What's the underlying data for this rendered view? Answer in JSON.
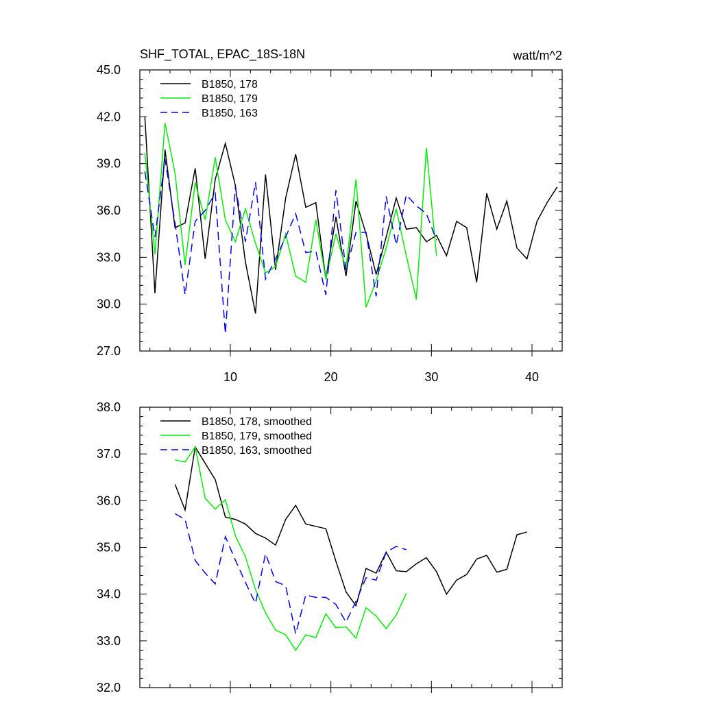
{
  "chart_data": [
    {
      "type": "line",
      "title": "SHF_TOTAL, EPAC_18S-18N",
      "units": "watt/m^2",
      "xlim": [
        1,
        43
      ],
      "ylim": [
        27,
        45
      ],
      "x_ticks": [
        10,
        20,
        30,
        40
      ],
      "x_tick_labels": [
        "10",
        "20",
        "30",
        "40"
      ],
      "y_ticks": [
        27,
        30,
        33,
        36,
        39,
        42,
        45
      ],
      "y_tick_labels": [
        "27.0",
        "30.0",
        "33.0",
        "36.0",
        "39.0",
        "42.0",
        "45.0"
      ],
      "legend_position": "top-left",
      "series": [
        {
          "name": "B1850, 178",
          "color": "#000000",
          "dash": "solid",
          "x": [
            1.5,
            2.5,
            3.5,
            4.5,
            5.5,
            6.5,
            7.5,
            8.5,
            9.5,
            10.5,
            11.5,
            12.5,
            13.5,
            14.5,
            15.5,
            16.5,
            17.5,
            18.5,
            19.5,
            20.5,
            21.5,
            22.5,
            23.5,
            24.5,
            25.5,
            26.5,
            27.5,
            28.5,
            29.5,
            30.5,
            31.5,
            32.5,
            33.5,
            34.5,
            35.5,
            36.5,
            37.5,
            38.5,
            39.5,
            40.5,
            41.5,
            42.5
          ],
          "values": [
            42.0,
            30.7,
            39.9,
            34.9,
            35.2,
            38.7,
            32.9,
            38.0,
            40.3,
            37.6,
            32.7,
            29.4,
            38.3,
            32.2,
            36.8,
            39.6,
            36.2,
            36.5,
            31.6,
            35.6,
            31.8,
            36.6,
            34.5,
            31.9,
            34.3,
            36.8,
            34.8,
            34.9,
            34.0,
            34.4,
            33.1,
            35.3,
            34.9,
            31.4,
            37.1,
            34.8,
            36.6,
            33.6,
            32.9,
            35.3,
            36.5,
            37.5
          ]
        },
        {
          "name": "B1850, 179",
          "color": "#00ee00",
          "dash": "solid",
          "x": [
            1.5,
            2.5,
            3.5,
            4.5,
            5.5,
            6.5,
            7.5,
            8.5,
            9.5,
            10.5,
            11.5,
            12.5,
            13.5,
            14.5,
            15.5,
            16.5,
            17.5,
            18.5,
            19.5,
            20.5,
            21.5,
            22.5,
            23.5,
            24.5,
            25.5,
            26.5,
            27.5,
            28.5,
            29.5,
            30.5
          ],
          "values": [
            39.7,
            33.2,
            41.6,
            38.4,
            32.5,
            37.8,
            35.4,
            39.4,
            35.4,
            34.0,
            36.1,
            33.9,
            32.0,
            32.4,
            34.5,
            31.8,
            31.4,
            35.4,
            31.6,
            34.5,
            32.3,
            38.0,
            29.8,
            31.5,
            33.6,
            36.1,
            33.1,
            30.3,
            40.0,
            33.1
          ]
        },
        {
          "name": "B1850, 163",
          "color": "#0000ee",
          "dash": "dashed",
          "x": [
            1.5,
            2.5,
            3.5,
            4.5,
            5.5,
            6.5,
            7.5,
            8.5,
            9.5,
            10.5,
            11.5,
            12.5,
            13.5,
            14.5,
            15.5,
            16.5,
            17.5,
            18.5,
            19.5,
            20.5,
            21.5,
            22.5,
            23.5,
            24.5,
            25.5,
            26.5,
            27.5,
            28.5,
            29.5,
            30.5
          ],
          "values": [
            38.5,
            34.3,
            39.3,
            35.2,
            30.6,
            35.3,
            36.0,
            37.1,
            28.1,
            37.5,
            34.0,
            37.8,
            31.6,
            32.9,
            34.3,
            35.8,
            33.3,
            33.4,
            30.6,
            37.3,
            32.2,
            34.6,
            34.6,
            30.5,
            36.9,
            33.8,
            37.0,
            36.3,
            35.8,
            34.1
          ]
        }
      ]
    },
    {
      "type": "line",
      "title": "",
      "xlim": [
        1,
        43
      ],
      "ylim": [
        32,
        38
      ],
      "x_ticks": [
        10,
        20,
        30,
        40
      ],
      "x_tick_labels": [
        "",
        "",
        "",
        ""
      ],
      "y_ticks": [
        32,
        33,
        34,
        35,
        36,
        37,
        38
      ],
      "y_tick_labels": [
        "32.0",
        "33.0",
        "34.0",
        "35.0",
        "36.0",
        "37.0",
        "38.0"
      ],
      "legend_position": "top-left",
      "series": [
        {
          "name": "B1850, 178, smoothed",
          "color": "#000000",
          "dash": "solid",
          "x": [
            4.5,
            5.5,
            6.5,
            7.5,
            8.5,
            9.5,
            10.5,
            11.5,
            12.5,
            13.5,
            14.5,
            15.5,
            16.5,
            17.5,
            18.5,
            19.5,
            20.5,
            21.5,
            22.5,
            23.5,
            24.5,
            25.5,
            26.5,
            27.5,
            28.5,
            29.5,
            30.5,
            31.5,
            32.5,
            33.5,
            34.5,
            35.5,
            36.5,
            37.5,
            38.5,
            39.5
          ],
          "values": [
            36.35,
            35.8,
            37.15,
            36.8,
            36.45,
            35.65,
            35.6,
            35.5,
            35.3,
            35.2,
            35.05,
            35.6,
            35.9,
            35.5,
            35.45,
            35.4,
            34.7,
            34.05,
            33.75,
            34.55,
            34.45,
            34.9,
            34.5,
            34.48,
            34.65,
            34.78,
            34.48,
            34.0,
            34.3,
            34.42,
            34.75,
            34.83,
            34.47,
            34.53,
            35.27,
            35.33
          ]
        },
        {
          "name": "B1850, 179, smoothed",
          "color": "#00ee00",
          "dash": "solid",
          "x": [
            4.5,
            5.5,
            6.5,
            7.5,
            8.5,
            9.5,
            10.5,
            11.5,
            12.5,
            13.5,
            14.5,
            15.5,
            16.5,
            17.5,
            18.5,
            19.5,
            20.5,
            21.5,
            22.5,
            23.5,
            24.5,
            25.5,
            26.5,
            27.5
          ],
          "values": [
            36.87,
            36.83,
            37.15,
            36.05,
            35.82,
            36.02,
            35.25,
            34.8,
            34.1,
            33.6,
            33.23,
            33.13,
            32.8,
            33.13,
            33.07,
            33.58,
            33.28,
            33.3,
            33.06,
            33.71,
            33.53,
            33.26,
            33.55,
            34.02
          ]
        },
        {
          "name": "B1850, 163, smoothed",
          "color": "#0000ee",
          "dash": "dashed",
          "x": [
            4.5,
            5.5,
            6.5,
            7.5,
            8.5,
            9.5,
            10.5,
            11.5,
            12.5,
            13.5,
            14.5,
            15.5,
            16.5,
            17.5,
            18.5,
            19.5,
            20.5,
            21.5,
            22.5,
            23.5,
            24.5,
            25.5,
            26.5,
            27.5
          ],
          "values": [
            35.72,
            35.6,
            34.72,
            34.45,
            34.22,
            35.23,
            34.73,
            34.25,
            33.8,
            34.87,
            34.27,
            34.18,
            33.15,
            33.98,
            33.93,
            33.93,
            33.78,
            33.4,
            33.85,
            34.35,
            34.3,
            34.9,
            35.02,
            34.95
          ]
        }
      ]
    }
  ]
}
